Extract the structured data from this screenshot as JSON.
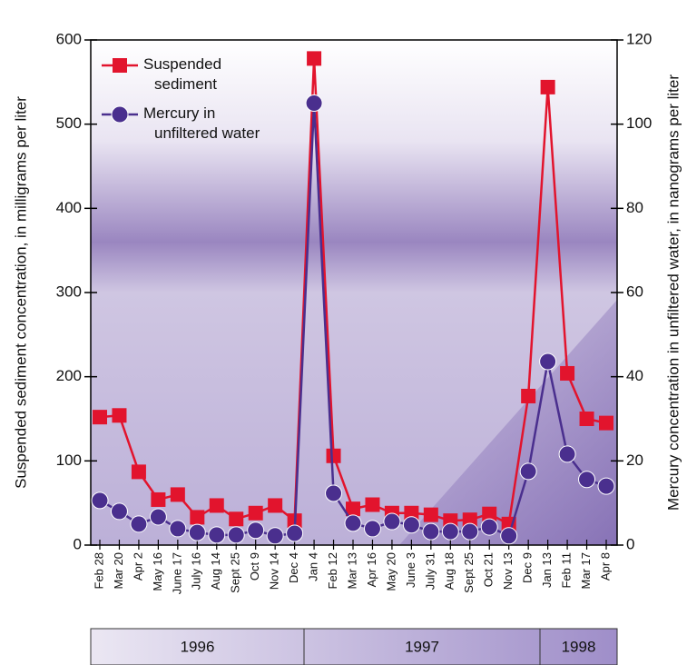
{
  "chart_data": {
    "type": "line",
    "y_label": "Suspended sediment concentration, in milligrams per liter",
    "y2_label": "Mercury concentration in unfiltered water, in nanograms per liter",
    "categories": [
      "Feb 28",
      "Mar 20",
      "Apr 2",
      "May 16",
      "June 17",
      "July 16",
      "Aug 14",
      "Sept 25",
      "Oct 9",
      "Nov 14",
      "Dec 4",
      "Jan 4",
      "Feb 12",
      "Mar 13",
      "Apr 16",
      "May 20",
      "June 3",
      "July 31",
      "Aug 18",
      "Sept 25",
      "Oct 21",
      "Nov 13",
      "Dec 9",
      "Jan 13",
      "Feb 11",
      "Mar 17",
      "Apr 8"
    ],
    "periods": [
      "1996",
      "1997",
      "1998"
    ],
    "series": [
      {
        "name": "Suspended sediment",
        "color": "#e2142d",
        "marker": "square",
        "values": [
          152,
          154,
          87,
          54,
          60,
          33,
          47,
          31,
          38,
          47,
          29,
          578,
          106,
          43,
          48,
          38,
          38,
          36,
          29,
          30,
          37,
          25,
          177,
          544,
          204,
          150,
          145
        ]
      },
      {
        "name": "Mercury in unfiltered water",
        "color": "#4a2f8e",
        "marker": "circle",
        "axis": "y2",
        "values": [
          10.6,
          8,
          5,
          6.7,
          3.9,
          3,
          2.4,
          2.4,
          3.5,
          2.2,
          2.8,
          105,
          12.3,
          5.2,
          3.9,
          5.6,
          4.8,
          3.2,
          3.2,
          3.2,
          4.3,
          2.2,
          17.5,
          43.6,
          21.6,
          15.6,
          14
        ]
      }
    ],
    "ylim": [
      0,
      600
    ],
    "yticks": [
      0,
      100,
      200,
      300,
      400,
      500,
      600
    ],
    "y2lim": [
      0,
      120
    ],
    "y2ticks": [
      0,
      20,
      40,
      60,
      80,
      100,
      120
    ],
    "legend": "upper left"
  }
}
